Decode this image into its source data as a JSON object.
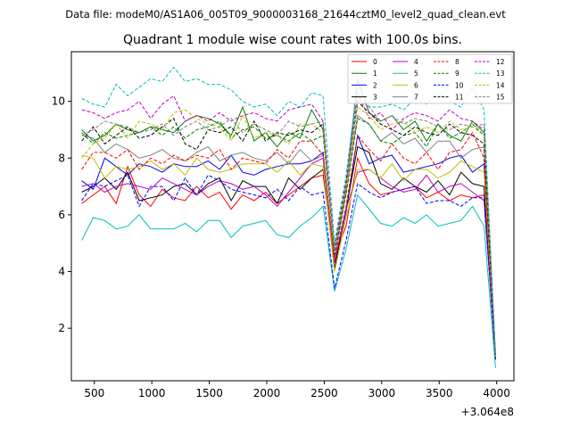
{
  "chart_data": {
    "type": "line",
    "suptitle": "Data file: modeM0/AS1A06_005T09_9000003168_21644cztM0_level2_quad_clean.evt",
    "title": "Quadrant 1 module wise count rates with 100.0s bins.",
    "xlabel": "",
    "ylabel": "",
    "x_offset_label": "+3.064e8",
    "xlim": [
      300,
      4150
    ],
    "ylim": [
      0.15,
      11.75
    ],
    "x_ticks": [
      500,
      1000,
      1500,
      2000,
      2500,
      3000,
      3500,
      4000
    ],
    "y_ticks": [
      2,
      4,
      6,
      8,
      10
    ],
    "legend_position": "top-right",
    "x": [
      390,
      490,
      590,
      690,
      790,
      890,
      990,
      1090,
      1190,
      1290,
      1390,
      1490,
      1590,
      1690,
      1790,
      1890,
      1990,
      2090,
      2190,
      2290,
      2390,
      2490,
      2590,
      2690,
      2790,
      2890,
      2990,
      3090,
      3190,
      3290,
      3390,
      3490,
      3590,
      3690,
      3790,
      3890,
      3990
    ],
    "series": [
      {
        "name": "0",
        "color": "#ff0000",
        "dash": "solid",
        "values": [
          6.4,
          6.7,
          7.0,
          6.4,
          7.7,
          6.7,
          6.3,
          6.9,
          6.6,
          6.5,
          7.0,
          6.6,
          6.8,
          6.2,
          6.7,
          6.5,
          6.8,
          6.4,
          6.7,
          7.0,
          7.3,
          7.4,
          4.5,
          5.6,
          8.0,
          7.1,
          6.7,
          6.8,
          6.9,
          7.0,
          6.6,
          6.8,
          6.5,
          6.7,
          6.6,
          6.7,
          1.0
        ]
      },
      {
        "name": "1",
        "color": "#008000",
        "dash": "solid",
        "values": [
          9.0,
          8.6,
          8.8,
          9.2,
          9.0,
          8.9,
          9.1,
          9.0,
          8.9,
          9.3,
          9.5,
          9.4,
          9.2,
          8.8,
          9.8,
          8.6,
          8.9,
          8.4,
          8.9,
          8.7,
          9.7,
          9.0,
          4.8,
          7.0,
          10.8,
          9.6,
          9.3,
          9.5,
          9.0,
          9.3,
          8.6,
          9.2,
          8.8,
          8.6,
          9.3,
          8.9,
          1.1
        ]
      },
      {
        "name": "2",
        "color": "#0000ff",
        "dash": "solid",
        "values": [
          7.2,
          6.9,
          8.0,
          7.7,
          7.4,
          7.8,
          7.7,
          7.5,
          7.8,
          7.7,
          7.7,
          7.9,
          7.6,
          8.1,
          7.5,
          7.4,
          7.6,
          7.7,
          7.8,
          7.8,
          7.9,
          8.2,
          4.3,
          6.1,
          8.8,
          7.8,
          8.0,
          8.1,
          7.5,
          7.6,
          7.7,
          7.8,
          8.0,
          8.1,
          7.5,
          7.8,
          1.0
        ]
      },
      {
        "name": "3",
        "color": "#000000",
        "dash": "solid",
        "values": [
          6.8,
          7.0,
          7.3,
          6.9,
          7.5,
          6.5,
          6.6,
          6.7,
          7.0,
          7.1,
          6.7,
          7.1,
          7.3,
          6.5,
          7.2,
          7.0,
          7.0,
          6.4,
          7.3,
          6.9,
          7.3,
          7.6,
          4.1,
          6.2,
          8.4,
          8.2,
          7.1,
          6.9,
          7.3,
          7.0,
          6.8,
          7.2,
          6.7,
          7.5,
          7.1,
          7.0,
          0.9
        ]
      },
      {
        "name": "4",
        "color": "#bf00bf",
        "dash": "solid",
        "values": [
          7.0,
          7.1,
          6.8,
          7.0,
          7.1,
          7.0,
          6.9,
          7.3,
          7.1,
          6.9,
          6.7,
          7.0,
          7.2,
          7.1,
          6.9,
          7.0,
          6.7,
          6.3,
          6.8,
          7.3,
          7.8,
          8.0,
          4.3,
          6.2,
          7.5,
          7.6,
          7.3,
          7.0,
          6.8,
          6.9,
          7.4,
          6.8,
          7.0,
          7.1,
          6.8,
          6.5,
          1.0
        ]
      },
      {
        "name": "5",
        "color": "#00bfbf",
        "dash": "solid",
        "values": [
          5.1,
          5.9,
          5.8,
          5.5,
          5.6,
          6.0,
          5.5,
          5.5,
          5.5,
          5.7,
          5.4,
          5.8,
          5.8,
          5.2,
          5.6,
          5.7,
          5.8,
          5.3,
          5.2,
          5.6,
          5.9,
          6.3,
          3.3,
          4.8,
          6.7,
          6.2,
          5.7,
          5.6,
          5.9,
          5.7,
          6.0,
          5.6,
          5.7,
          5.8,
          6.3,
          5.6,
          0.6
        ]
      },
      {
        "name": "6",
        "color": "#bfbf00",
        "dash": "solid",
        "values": [
          8.1,
          8.0,
          7.3,
          7.7,
          7.6,
          7.7,
          7.9,
          7.6,
          7.8,
          7.4,
          8.0,
          7.6,
          7.5,
          7.6,
          7.8,
          7.8,
          7.8,
          7.5,
          7.9,
          7.4,
          7.8,
          7.7,
          4.0,
          5.9,
          7.6,
          7.6,
          7.3,
          7.8,
          7.2,
          7.6,
          7.6,
          7.3,
          7.5,
          7.9,
          7.7,
          7.5,
          1.0
        ]
      },
      {
        "name": "7",
        "color": "#808080",
        "dash": "solid",
        "values": [
          8.8,
          8.7,
          8.2,
          8.5,
          8.3,
          8.0,
          8.1,
          8.3,
          8.0,
          7.9,
          8.2,
          8.4,
          7.9,
          8.1,
          8.2,
          8.0,
          7.9,
          8.2,
          7.8,
          8.3,
          7.9,
          8.1,
          4.4,
          6.8,
          9.5,
          9.2,
          8.6,
          8.9,
          8.5,
          8.7,
          8.2,
          8.6,
          8.6,
          8.0,
          8.3,
          8.4,
          1.0
        ]
      },
      {
        "name": "8",
        "color": "#ff0000",
        "dash": "dashed",
        "values": [
          7.6,
          8.2,
          8.2,
          8.0,
          8.3,
          7.6,
          8.0,
          7.8,
          8.1,
          7.9,
          8.1,
          8.0,
          8.3,
          7.6,
          8.0,
          7.9,
          7.8,
          8.3,
          8.0,
          8.6,
          8.6,
          8.1,
          4.4,
          6.3,
          8.8,
          8.3,
          7.9,
          8.5,
          8.0,
          7.8,
          8.2,
          7.6,
          8.2,
          8.3,
          8.9,
          8.0,
          1.0
        ]
      },
      {
        "name": "9",
        "color": "#008000",
        "dash": "dashed",
        "values": [
          8.9,
          8.5,
          8.9,
          8.7,
          8.8,
          8.9,
          9.1,
          8.8,
          9.1,
          8.7,
          9.0,
          9.1,
          9.3,
          8.7,
          9.0,
          9.1,
          8.7,
          8.8,
          8.6,
          8.9,
          8.6,
          8.8,
          4.7,
          6.7,
          9.4,
          9.2,
          8.6,
          8.5,
          8.8,
          8.9,
          8.4,
          9.2,
          8.7,
          8.9,
          9.2,
          8.8,
          1.0
        ]
      },
      {
        "name": "10",
        "color": "#0000ff",
        "dash": "dashed",
        "values": [
          6.5,
          7.1,
          7.0,
          7.2,
          7.4,
          6.3,
          7.0,
          7.0,
          6.5,
          7.3,
          6.7,
          7.4,
          7.2,
          6.9,
          6.8,
          6.7,
          6.6,
          6.9,
          6.5,
          7.0,
          6.7,
          6.8,
          3.4,
          5.1,
          7.1,
          6.8,
          6.6,
          6.8,
          6.9,
          7.0,
          6.4,
          6.5,
          6.5,
          6.3,
          6.6,
          6.6,
          0.9
        ]
      },
      {
        "name": "11",
        "color": "#000000",
        "dash": "dashed",
        "values": [
          8.6,
          9.1,
          8.5,
          8.8,
          9.1,
          8.7,
          8.8,
          9.1,
          9.4,
          8.5,
          8.3,
          9.0,
          8.9,
          9.1,
          8.6,
          9.3,
          8.6,
          8.9,
          8.8,
          9.0,
          8.9,
          9.2,
          4.6,
          7.0,
          10.0,
          9.6,
          9.2,
          9.0,
          8.8,
          9.1,
          8.9,
          8.8,
          9.2,
          8.9,
          8.8,
          8.5,
          1.0
        ]
      },
      {
        "name": "12",
        "color": "#bf00bf",
        "dash": "dashed",
        "values": [
          9.7,
          9.6,
          9.4,
          9.6,
          9.7,
          10.0,
          9.4,
          9.9,
          10.2,
          9.3,
          9.5,
          9.3,
          9.6,
          9.3,
          9.5,
          9.6,
          9.4,
          9.3,
          9.7,
          9.8,
          9.9,
          9.3,
          4.9,
          7.2,
          10.3,
          9.4,
          9.6,
          9.0,
          9.4,
          9.6,
          9.5,
          9.3,
          9.7,
          9.4,
          9.3,
          9.0,
          1.0
        ]
      },
      {
        "name": "13",
        "color": "#00bfbf",
        "dash": "dashed",
        "values": [
          10.1,
          9.9,
          9.8,
          10.6,
          10.2,
          10.5,
          10.8,
          10.7,
          11.2,
          10.7,
          10.8,
          10.6,
          10.6,
          10.4,
          10.0,
          9.8,
          9.9,
          9.5,
          10.0,
          9.8,
          10.3,
          10.2,
          5.0,
          7.4,
          10.6,
          9.8,
          9.8,
          9.9,
          9.7,
          10.1,
          9.9,
          10.3,
          10.0,
          9.8,
          10.5,
          9.7,
          1.1
        ]
      },
      {
        "name": "14",
        "color": "#bfbf00",
        "dash": "dashed",
        "values": [
          8.0,
          8.5,
          8.7,
          9.2,
          8.7,
          9.3,
          9.2,
          9.0,
          9.6,
          9.7,
          9.4,
          9.2,
          9.1,
          8.6,
          9.5,
          8.7,
          8.9,
          8.8,
          8.5,
          9.2,
          9.2,
          8.9,
          4.8,
          6.9,
          9.8,
          9.5,
          9.0,
          9.2,
          9.3,
          8.9,
          9.1,
          8.9,
          9.3,
          9.0,
          9.1,
          8.8,
          1.0
        ]
      },
      {
        "name": "15",
        "color": "#808080",
        "dash": "dashed",
        "values": [
          8.8,
          9.0,
          9.3,
          9.2,
          9.1,
          8.9,
          9.0,
          9.2,
          8.8,
          9.1,
          9.3,
          9.0,
          9.1,
          9.4,
          8.9,
          9.2,
          9.0,
          8.8,
          9.3,
          9.1,
          9.2,
          9.3,
          4.7,
          7.1,
          10.1,
          9.8,
          9.3,
          9.5,
          9.2,
          9.4,
          9.3,
          9.1,
          9.0,
          9.2,
          9.1,
          9.2,
          1.0
        ]
      }
    ]
  }
}
